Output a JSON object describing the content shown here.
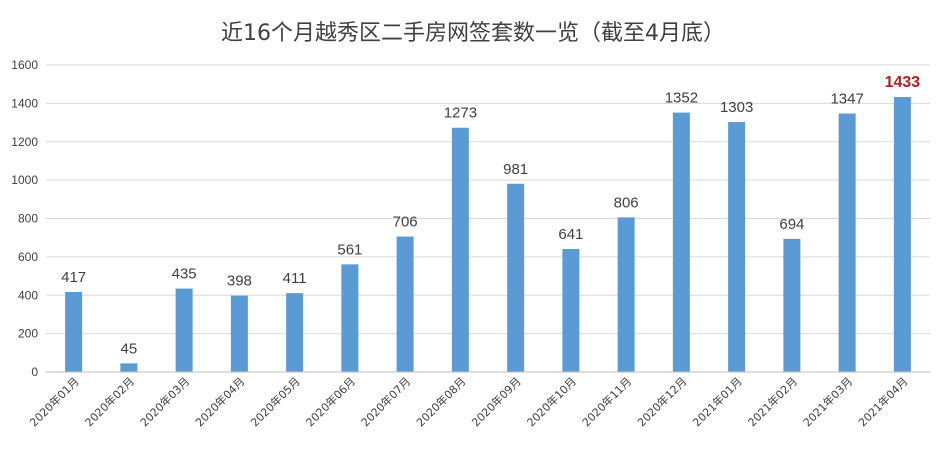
{
  "chart_data": {
    "type": "bar",
    "title": "近16个月越秀区二手房网签套数一览（截至4月底）",
    "categories": [
      "2020年01月",
      "2020年02月",
      "2020年03月",
      "2020年04月",
      "2020年05月",
      "2020年06月",
      "2020年07月",
      "2020年08月",
      "2020年09月",
      "2020年10月",
      "2020年11月",
      "2020年12月",
      "2021年01月",
      "2021年02月",
      "2021年03月",
      "2021年04月"
    ],
    "values": [
      417,
      45,
      435,
      398,
      411,
      561,
      706,
      1273,
      981,
      641,
      806,
      1352,
      1303,
      694,
      1347,
      1433
    ],
    "ylim": [
      0,
      1600
    ],
    "yticks": [
      0,
      200,
      400,
      600,
      800,
      1000,
      1200,
      1400,
      1600
    ],
    "grid": true,
    "legend": "none",
    "bar_color": "#5b9bd5",
    "highlight_index": 15,
    "highlight_color": "#b01e1e"
  }
}
